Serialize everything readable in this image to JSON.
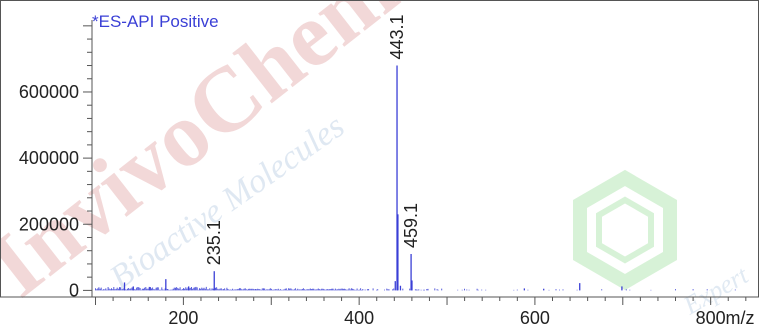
{
  "colors": {
    "spectrum": "#3a3fd6",
    "axis": "#555555",
    "title": "#3a3fd6",
    "watermark_red": "#e8b8b8",
    "watermark_blue": "#c4d6e8",
    "watermark_green": "#c6ecc6"
  },
  "watermark": {
    "text_main": "InvivoChem",
    "text_sub": "Bioactive Molecules",
    "text_corner": "Expert"
  },
  "chart_data": {
    "type": "line",
    "title": "*ES-API Positive",
    "xlabel": "m/z",
    "ylabel": "",
    "xlim": [
      96,
      855
    ],
    "ylim": [
      -20000,
      860000
    ],
    "x_ticks": [
      200,
      400,
      600,
      800
    ],
    "y_ticks": [
      0,
      200000,
      400000,
      600000
    ],
    "peak_labels": [
      "443.1",
      "459.1",
      "235.1"
    ],
    "peaks": [
      {
        "x": 443.1,
        "y": 680000,
        "label": "443.1"
      },
      {
        "x": 444.1,
        "y": 230000
      },
      {
        "x": 459.1,
        "y": 110000,
        "label": "459.1"
      },
      {
        "x": 460.1,
        "y": 30000
      },
      {
        "x": 235.1,
        "y": 58000,
        "label": "235.1"
      },
      {
        "x": 441.1,
        "y": 28000
      },
      {
        "x": 447.0,
        "y": 14000
      },
      {
        "x": 180.0,
        "y": 34000
      },
      {
        "x": 133.0,
        "y": 24000
      },
      {
        "x": 143.0,
        "y": 12000
      },
      {
        "x": 162.0,
        "y": 10000
      },
      {
        "x": 206.0,
        "y": 12000
      },
      {
        "x": 651.0,
        "y": 22000
      },
      {
        "x": 699.0,
        "y": 12000
      },
      {
        "x": 588.0,
        "y": 6000
      },
      {
        "x": 610.0,
        "y": 5000
      }
    ],
    "grid": false,
    "legend": "none"
  }
}
